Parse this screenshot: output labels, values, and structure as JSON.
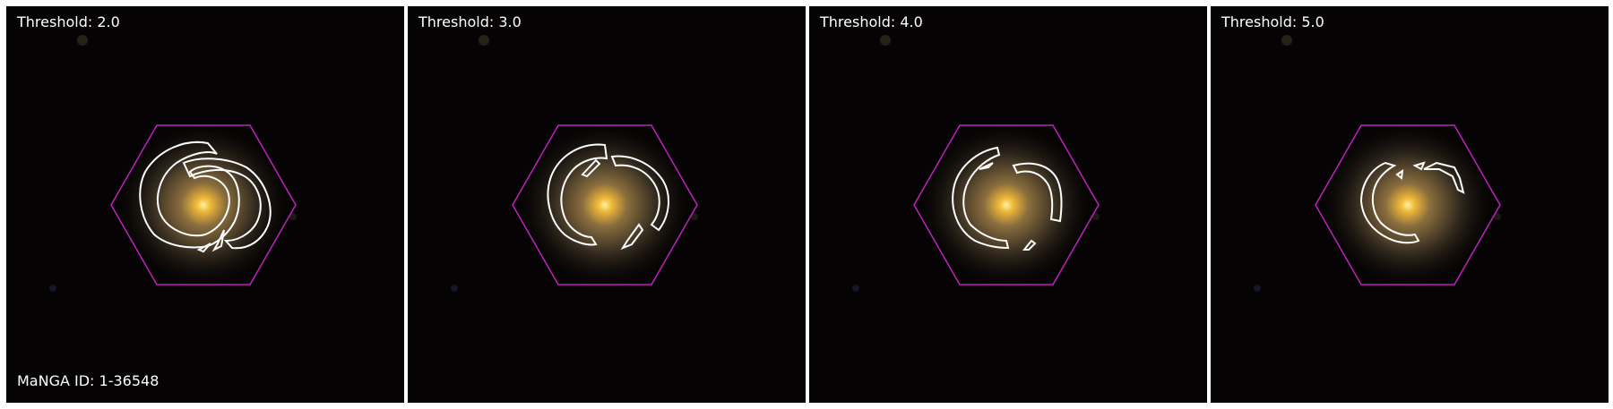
{
  "figure": {
    "manga_id_label": "MaNGA ID: 1-36548",
    "panels": [
      {
        "label": "Threshold: 2.0",
        "threshold": 2.0
      },
      {
        "label": "Threshold: 3.0",
        "threshold": 3.0
      },
      {
        "label": "Threshold: 4.0",
        "threshold": 4.0
      },
      {
        "label": "Threshold: 5.0",
        "threshold": 5.0
      }
    ],
    "colors": {
      "background": "#050303",
      "galaxy_core": "#ffd060",
      "galaxy_halo": "#6a5a3a",
      "contour": "#ffffff",
      "hexagon": "#c020c0",
      "separator": "#ffffff"
    }
  }
}
